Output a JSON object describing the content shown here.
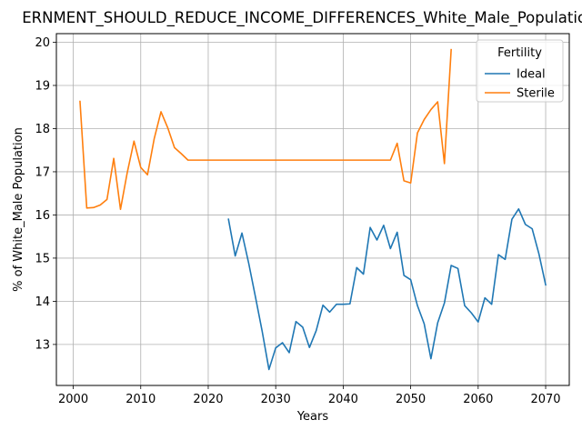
{
  "chart_data": {
    "type": "line",
    "title": "ERNMENT_SHOULD_REDUCE_INCOME_DIFFERENCES_White_Male_Population_",
    "xlabel": "Years",
    "ylabel": "% of White_Male Population",
    "xlim": [
      1997.5,
      2073.5
    ],
    "ylim": [
      12.05,
      20.2
    ],
    "xticks": [
      2000,
      2010,
      2020,
      2030,
      2040,
      2050,
      2060,
      2070
    ],
    "yticks": [
      13,
      14,
      15,
      16,
      17,
      18,
      19,
      20
    ],
    "grid": true,
    "legend": {
      "title": "Fertility",
      "position": "top-right"
    },
    "series": [
      {
        "name": "Ideal",
        "color": "#1f77b4",
        "x": [
          2023,
          2024,
          2025,
          2026,
          2027,
          2028,
          2029,
          2030,
          2031,
          2032,
          2033,
          2034,
          2035,
          2036,
          2037,
          2038,
          2039,
          2040,
          2041,
          2042,
          2043,
          2044,
          2045,
          2046,
          2047,
          2048,
          2049,
          2050,
          2051,
          2052,
          2053,
          2054,
          2055,
          2056,
          2057,
          2058,
          2059,
          2060,
          2061,
          2062,
          2063,
          2064,
          2065,
          2066,
          2067,
          2068,
          2069,
          2070
        ],
        "y": [
          15.9,
          15.05,
          15.58,
          14.88,
          14.1,
          13.3,
          12.42,
          12.92,
          13.04,
          12.81,
          13.53,
          13.4,
          12.93,
          13.32,
          13.91,
          13.75,
          13.93,
          13.93,
          13.94,
          14.78,
          14.63,
          15.71,
          15.42,
          15.76,
          15.22,
          15.6,
          14.6,
          14.5,
          13.9,
          13.48,
          12.67,
          13.5,
          13.96,
          14.83,
          14.76,
          13.9,
          13.73,
          13.52,
          14.08,
          13.93,
          15.08,
          14.97,
          15.9,
          16.14,
          15.78,
          15.68,
          15.1,
          14.38
        ]
      },
      {
        "name": "Sterile",
        "color": "#ff7f0e",
        "x": [
          2001,
          2002,
          2003,
          2004,
          2005,
          2006,
          2007,
          2008,
          2009,
          2010,
          2011,
          2012,
          2013,
          2014,
          2015,
          2016,
          2017,
          2018,
          2019,
          2020,
          2021,
          2022,
          2023,
          2024,
          2025,
          2026,
          2027,
          2028,
          2029,
          2030,
          2031,
          2032,
          2033,
          2034,
          2035,
          2036,
          2037,
          2038,
          2039,
          2040,
          2041,
          2042,
          2043,
          2044,
          2045,
          2046,
          2047,
          2048,
          2049,
          2050,
          2051,
          2052,
          2053,
          2054,
          2055,
          2056
        ],
        "y": [
          18.63,
          16.16,
          16.17,
          16.23,
          16.36,
          17.31,
          16.13,
          16.98,
          17.71,
          17.1,
          16.93,
          17.77,
          18.39,
          18.02,
          17.56,
          17.42,
          17.27,
          17.27,
          17.27,
          17.27,
          17.27,
          17.27,
          17.27,
          17.27,
          17.27,
          17.27,
          17.27,
          17.27,
          17.27,
          17.27,
          17.27,
          17.27,
          17.27,
          17.27,
          17.27,
          17.27,
          17.27,
          17.27,
          17.27,
          17.27,
          17.27,
          17.27,
          17.27,
          17.27,
          17.27,
          17.27,
          17.27,
          17.66,
          16.79,
          16.74,
          17.9,
          18.21,
          18.44,
          18.62,
          17.19,
          19.83
        ]
      }
    ]
  }
}
